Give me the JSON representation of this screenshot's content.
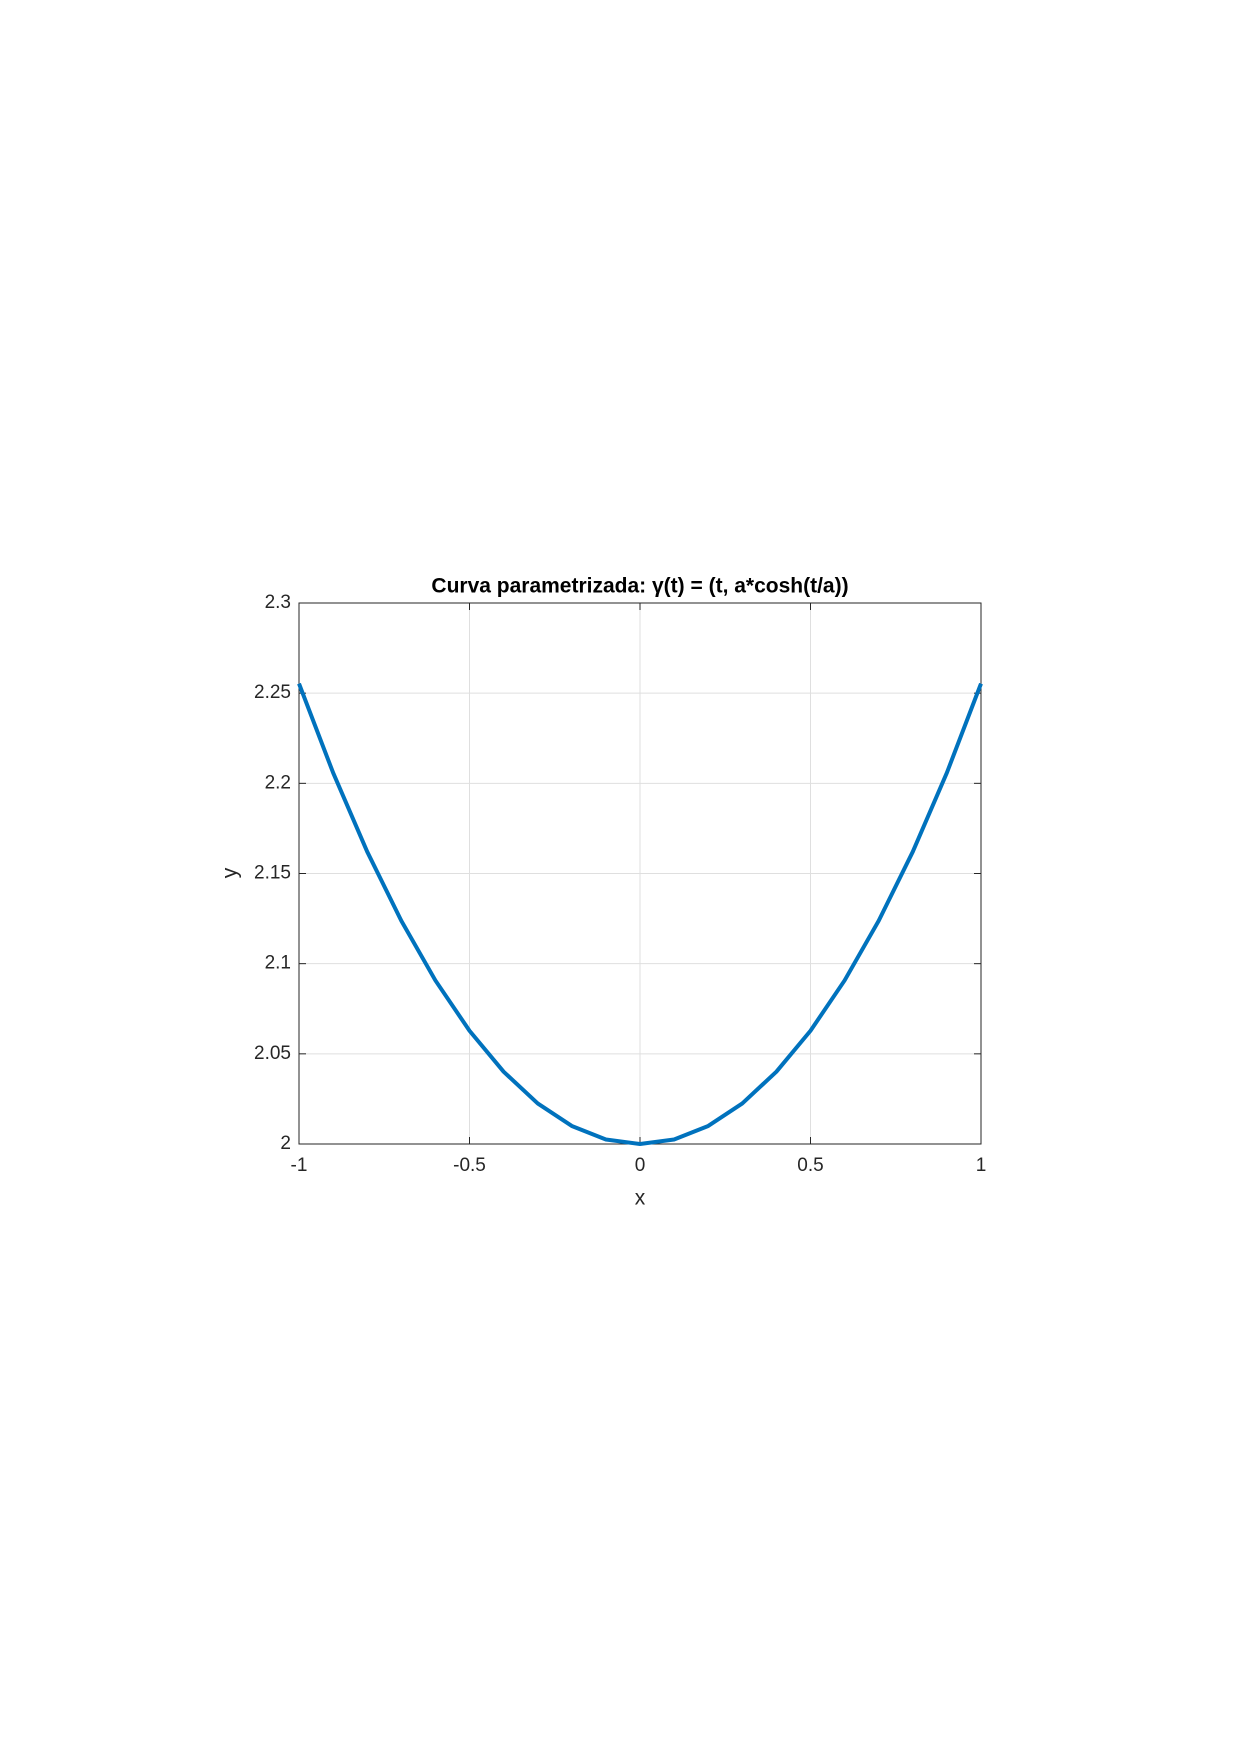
{
  "chart_data": {
    "type": "line",
    "title": "Curva parametrizada: γ(t) = (t, a*cosh(t/a))",
    "x_label": "x",
    "y_label": "y",
    "x": [
      -1,
      -0.9,
      -0.8,
      -0.7,
      -0.6,
      -0.5,
      -0.4,
      -0.3,
      -0.2,
      -0.1,
      0,
      0.1,
      0.2,
      0.3,
      0.4,
      0.5,
      0.6,
      0.7,
      0.8,
      0.9,
      1
    ],
    "series": [
      {
        "color": "#0072bd",
        "values": [
          2.2553,
          2.2059,
          2.1621,
          2.1238,
          2.0907,
          2.0628,
          2.0401,
          2.0225,
          2.01,
          2.0025,
          2,
          2.0025,
          2.01,
          2.0225,
          2.0401,
          2.0628,
          2.0907,
          2.1238,
          2.1621,
          2.2059,
          2.2553
        ]
      }
    ],
    "xlim": [
      -1,
      1
    ],
    "xticks": [
      -1,
      -0.5,
      0,
      0.5,
      1
    ],
    "ylim": [
      2,
      2.3
    ],
    "yticks": [
      2,
      2.05,
      2.1,
      2.15,
      2.2,
      2.25,
      2.3
    ],
    "grid": true
  }
}
